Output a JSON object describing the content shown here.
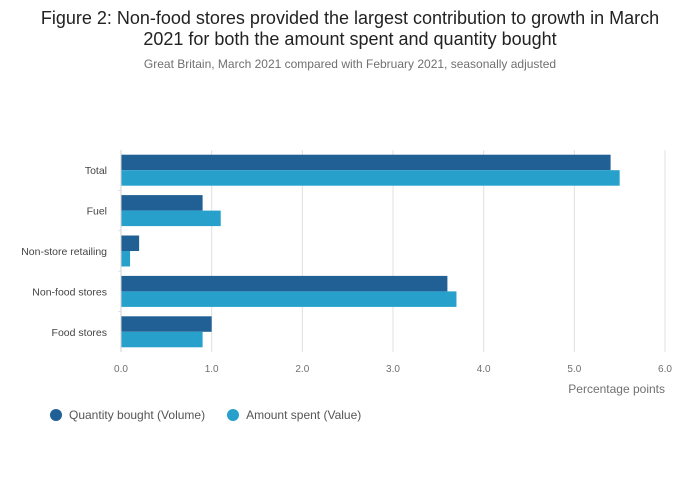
{
  "title": "Figure 2: Non-food stores provided the largest contribution to growth in March 2021 for both the amount spent and quantity bought",
  "subtitle": "Great Britain, March 2021 compared with February 2021, seasonally adjusted",
  "colors": {
    "volume": "#206095",
    "value": "#27a0cc",
    "grid": "#e0e0e0",
    "axis_text": "#707070"
  },
  "chart_data": {
    "type": "bar",
    "orientation": "horizontal",
    "categories": [
      "Total",
      "Fuel",
      "Non-store retailing",
      "Non-food stores",
      "Food stores"
    ],
    "series": [
      {
        "name": "Quantity bought (Volume)",
        "values": [
          5.4,
          0.9,
          0.2,
          3.6,
          1.0
        ]
      },
      {
        "name": "Amount spent (Value)",
        "values": [
          5.5,
          1.1,
          0.1,
          3.7,
          0.9
        ]
      }
    ],
    "xlabel": "Percentage points",
    "xlim": [
      0,
      6
    ],
    "xticks": [
      "0.0",
      "1.0",
      "2.0",
      "3.0",
      "4.0",
      "5.0",
      "6.0"
    ],
    "grid": true,
    "legend_position": "bottom-left"
  }
}
